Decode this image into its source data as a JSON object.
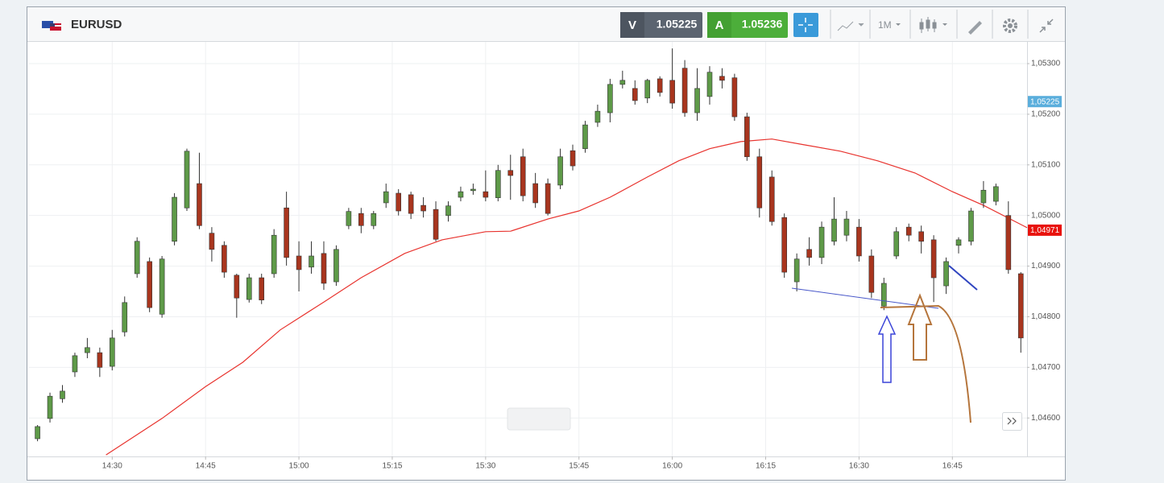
{
  "header": {
    "symbol": "EURUSD",
    "sell_label": "V",
    "sell_price": "1.05225",
    "buy_label": "A",
    "buy_price": "1.05236",
    "timeframe": "1M"
  },
  "chart_data": {
    "type": "candlestick",
    "x": [
      858,
      860,
      862,
      864,
      866,
      868,
      870,
      872,
      874,
      876,
      878,
      880,
      882,
      884,
      886,
      888,
      890,
      892,
      894,
      896,
      898,
      900,
      902,
      904,
      906,
      908,
      910,
      912,
      914,
      916,
      918,
      920,
      922,
      924,
      926,
      928,
      930,
      932,
      934,
      936,
      938,
      940,
      942,
      944,
      946,
      948,
      950,
      952,
      954,
      956,
      958,
      960,
      962,
      964,
      966,
      968,
      970,
      972,
      974,
      976,
      978,
      980,
      982,
      984,
      986,
      988,
      990,
      992,
      994,
      996,
      998,
      1000,
      1002,
      1004,
      1006,
      1008,
      1010,
      1012,
      1014,
      1016
    ],
    "open": [
      1.04559,
      1.04599,
      1.04638,
      1.04691,
      1.04729,
      1.04729,
      1.04702,
      1.0477,
      1.04885,
      1.04909,
      1.04805,
      1.04949,
      1.05015,
      1.05063,
      1.04965,
      1.04941,
      1.04882,
      1.04834,
      1.04877,
      1.04885,
      1.05015,
      1.0492,
      1.04898,
      1.04925,
      1.04869,
      1.0498,
      1.05004,
      1.0498,
      1.05025,
      1.05044,
      1.05041,
      1.0502,
      1.05012,
      1.05,
      1.05036,
      1.05049,
      1.05047,
      1.05035,
      1.05089,
      1.05116,
      1.05063,
      1.05063,
      1.0506,
      1.05128,
      1.05132,
      1.05184,
      1.05203,
      1.05259,
      1.05251,
      1.05232,
      1.0527,
      1.05267,
      1.05291,
      1.05203,
      1.05235,
      1.05275,
      1.05272,
      1.05195,
      1.05116,
      1.05076,
      1.04996,
      1.04869,
      1.04933,
      1.04917,
      1.04949,
      1.04961,
      1.04977,
      1.0492,
      1.04821,
      1.0492,
      1.04977,
      1.04968,
      1.04952,
      1.04861,
      1.04941,
      1.04949,
      1.05025,
      1.05028,
      1.05,
      1.04885
    ],
    "high": [
      1.04586,
      1.0465,
      1.04665,
      1.04729,
      1.04758,
      1.04739,
      1.04774,
      1.0484,
      1.04957,
      1.04917,
      1.0492,
      1.05044,
      1.05132,
      1.05124,
      1.04977,
      1.04949,
      1.04885,
      1.04885,
      1.04885,
      1.04973,
      1.05047,
      1.04949,
      1.04949,
      1.04949,
      1.04941,
      1.05015,
      1.05015,
      1.05009,
      1.05063,
      1.05052,
      1.05047,
      1.05036,
      1.05028,
      1.05028,
      1.05057,
      1.05063,
      1.05089,
      1.051,
      1.0512,
      1.05132,
      1.05084,
      1.05073,
      1.05132,
      1.0514,
      1.05187,
      1.05219,
      1.0527,
      1.05286,
      1.05267,
      1.0527,
      1.05275,
      1.0533,
      1.05307,
      1.05291,
      1.05295,
      1.05291,
      1.0528,
      1.05203,
      1.05132,
      1.05089,
      1.05004,
      1.04925,
      1.04957,
      1.04988,
      1.05036,
      1.05009,
      1.04993,
      1.04933,
      1.04877,
      1.04977,
      1.04984,
      1.0498,
      1.04961,
      1.04917,
      1.04957,
      1.05015,
      1.05068,
      1.05063,
      1.05028,
      1.04888
    ],
    "low": [
      1.04554,
      1.04591,
      1.0463,
      1.04681,
      1.04718,
      1.04681,
      1.04694,
      1.04761,
      1.04877,
      1.04809,
      1.04798,
      1.04941,
      1.05009,
      1.04973,
      1.04909,
      1.04877,
      1.04798,
      1.04828,
      1.04825,
      1.04877,
      1.04901,
      1.0485,
      1.04885,
      1.04853,
      1.04861,
      1.04973,
      1.04965,
      1.04973,
      1.05015,
      1.05,
      1.04993,
      1.04996,
      1.04949,
      1.04988,
      1.05028,
      1.05041,
      1.05028,
      1.05028,
      1.05031,
      1.05028,
      1.05015,
      1.05,
      1.05052,
      1.05089,
      1.05124,
      1.05175,
      1.05184,
      1.05251,
      1.05219,
      1.05222,
      1.05235,
      1.05211,
      1.05195,
      1.05187,
      1.05219,
      1.05251,
      1.05187,
      1.05108,
      1.04996,
      1.0498,
      1.04877,
      1.0485,
      1.04901,
      1.04904,
      1.04941,
      1.04949,
      1.04909,
      1.04837,
      1.04813,
      1.04914,
      1.04949,
      1.04925,
      1.04829,
      1.04845,
      1.04925,
      1.04941,
      1.05015,
      1.0502,
      1.04885,
      1.04729
    ],
    "close": [
      1.04583,
      1.04643,
      1.04653,
      1.04723,
      1.04739,
      1.047,
      1.04758,
      1.04828,
      1.04949,
      1.04818,
      1.04914,
      1.05036,
      1.05127,
      1.0498,
      1.04933,
      1.04888,
      1.04837,
      1.04877,
      1.04833,
      1.04961,
      1.04917,
      1.04893,
      1.0492,
      1.04866,
      1.04933,
      1.05008,
      1.0498,
      1.05004,
      1.05047,
      1.05009,
      1.05004,
      1.05009,
      1.04953,
      1.05019,
      1.05047,
      1.05052,
      1.05036,
      1.05089,
      1.05079,
      1.05039,
      1.05025,
      1.05004,
      1.05116,
      1.05098,
      1.05179,
      1.05206,
      1.05259,
      1.05267,
      1.05227,
      1.05267,
      1.05243,
      1.05222,
      1.05203,
      1.05251,
      1.05283,
      1.05267,
      1.05195,
      1.05116,
      1.05015,
      1.04988,
      1.04888,
      1.04914,
      1.04917,
      1.04977,
      1.04993,
      1.04993,
      1.0492,
      1.04848,
      1.04866,
      1.04968,
      1.04961,
      1.04949,
      1.04877,
      1.04909,
      1.04952,
      1.05009,
      1.0505,
      1.05057,
      1.04893,
      1.04758
    ],
    "up_color": "#5e9a48",
    "down_color": "#a8351e",
    "ma": {
      "color": "#e8332e",
      "x": [
        869,
        878,
        885,
        891,
        897,
        904,
        910,
        917,
        923,
        930,
        934,
        940,
        945,
        950,
        956,
        961,
        966,
        971,
        976,
        981,
        987,
        993,
        999,
        1005,
        1010,
        1017
      ],
      "values": [
        1.04527,
        1.04599,
        1.04662,
        1.0471,
        1.04774,
        1.04829,
        1.04877,
        1.04925,
        1.04952,
        1.04968,
        1.04969,
        1.04993,
        1.05009,
        1.05036,
        1.05076,
        1.05108,
        1.05132,
        1.05146,
        1.05151,
        1.0514,
        1.05127,
        1.05108,
        1.05084,
        1.05047,
        1.0502,
        1.04976
      ]
    },
    "markers": [
      {
        "value": 1.05225,
        "label": "1,05225",
        "color": "#5aaedc"
      },
      {
        "value": 1.04971,
        "label": "1,04971",
        "color": "#e8120c"
      }
    ],
    "xlim": [
      856.5,
      1017
    ],
    "xticks": [
      {
        "value": 870,
        "label": "14:30"
      },
      {
        "value": 885,
        "label": "14:45"
      },
      {
        "value": 900,
        "label": "15:00"
      },
      {
        "value": 915,
        "label": "15:15"
      },
      {
        "value": 930,
        "label": "15:30"
      },
      {
        "value": 945,
        "label": "15:45"
      },
      {
        "value": 960,
        "label": "16:00"
      },
      {
        "value": 975,
        "label": "16:15"
      },
      {
        "value": 990,
        "label": "16:30"
      },
      {
        "value": 1005,
        "label": "16:45"
      }
    ],
    "ylim": [
      1.04524,
      1.05343
    ],
    "yticks": [
      {
        "value": 1.046,
        "label": "1,04600"
      },
      {
        "value": 1.047,
        "label": "1,04700"
      },
      {
        "value": 1.048,
        "label": "1,04800"
      },
      {
        "value": 1.049,
        "label": "1,04900"
      },
      {
        "value": 1.05,
        "label": "1,05000"
      },
      {
        "value": 1.051,
        "label": "1,05100"
      },
      {
        "value": 1.052,
        "label": "1,05200"
      },
      {
        "value": 1.053,
        "label": "1,05300"
      }
    ],
    "grid": true
  }
}
